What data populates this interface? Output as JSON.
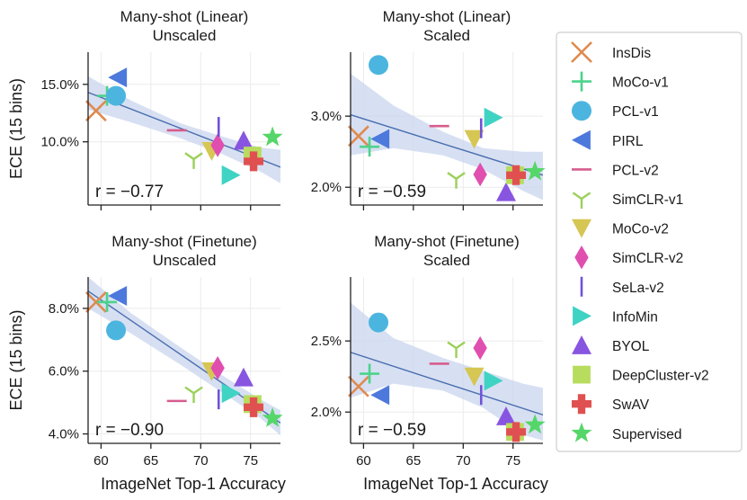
{
  "chart_data": {
    "type": "scatter",
    "legend": {
      "position": "right",
      "entries": [
        "InsDis",
        "MoCo-v1",
        "PCL-v1",
        "PIRL",
        "PCL-v2",
        "SimCLR-v1",
        "MoCo-v2",
        "SimCLR-v2",
        "SeLa-v2",
        "InfoMin",
        "BYOL",
        "DeepCluster-v2",
        "SwAV",
        "Supervised"
      ]
    },
    "methods": [
      {
        "name": "InsDis",
        "marker": "x",
        "color": "#e08a4f"
      },
      {
        "name": "MoCo-v1",
        "marker": "plus",
        "color": "#4bd38b"
      },
      {
        "name": "PCL-v1",
        "marker": "circle",
        "color": "#4cb5df"
      },
      {
        "name": "PIRL",
        "marker": "triangle-left",
        "color": "#4d79dc"
      },
      {
        "name": "PCL-v2",
        "marker": "hline",
        "color": "#d65d8e"
      },
      {
        "name": "SimCLR-v1",
        "marker": "tri-down",
        "color": "#9bd05a"
      },
      {
        "name": "MoCo-v2",
        "marker": "triangle-down",
        "color": "#d6c653"
      },
      {
        "name": "SimCLR-v2",
        "marker": "diamond",
        "color": "#e04fb0"
      },
      {
        "name": "SeLa-v2",
        "marker": "vline",
        "color": "#6f52d9"
      },
      {
        "name": "InfoMin",
        "marker": "triangle-right",
        "color": "#3fd3c4"
      },
      {
        "name": "BYOL",
        "marker": "triangle-up",
        "color": "#8855e0"
      },
      {
        "name": "DeepCluster-v2",
        "marker": "square",
        "color": "#b8dc5e"
      },
      {
        "name": "SwAV",
        "marker": "plus-filled",
        "color": "#e05050"
      },
      {
        "name": "Supervised",
        "marker": "star",
        "color": "#55d669"
      }
    ],
    "panels": [
      {
        "title_line1": "Many-shot (Linear)",
        "title_line2": "Unscaled",
        "ylabel": "ECE (15 bins)",
        "xlabel": "",
        "xlim": [
          58.7,
          78.0
        ],
        "ylim": [
          4.5,
          17.8
        ],
        "xticks": [
          60,
          65,
          70,
          75
        ],
        "xtick_labels": [
          "",
          "",
          "",
          ""
        ],
        "yticks": [
          10,
          15
        ],
        "ytick_labels": [
          "10.0%",
          "15.0%"
        ],
        "annotation": "r = −0.77",
        "fit": {
          "x1": 58.7,
          "y1": 14.3,
          "x2": 78.0,
          "y2": 7.8
        },
        "band": {
          "x": [
            58.7,
            63,
            68,
            72,
            76,
            78.0
          ],
          "upper": [
            15.7,
            13.6,
            11.6,
            10.5,
            9.5,
            9.3
          ],
          "lower": [
            12.8,
            11.7,
            10.3,
            9.0,
            7.4,
            6.4
          ]
        },
        "points": [
          {
            "name": "InsDis",
            "x": 59.5,
            "y": 12.7
          },
          {
            "name": "MoCo-v1",
            "x": 60.6,
            "y": 14.0
          },
          {
            "name": "PCL-v1",
            "x": 61.5,
            "y": 14.0
          },
          {
            "name": "PIRL",
            "x": 61.7,
            "y": 15.6
          },
          {
            "name": "PCL-v2",
            "x": 67.6,
            "y": 11.0
          },
          {
            "name": "SimCLR-v1",
            "x": 69.3,
            "y": 8.5
          },
          {
            "name": "MoCo-v2",
            "x": 71.1,
            "y": 9.2
          },
          {
            "name": "SimCLR-v2",
            "x": 71.7,
            "y": 9.7
          },
          {
            "name": "SeLa-v2",
            "x": 71.8,
            "y": 11.3
          },
          {
            "name": "InfoMin",
            "x": 73.0,
            "y": 7.1
          },
          {
            "name": "BYOL",
            "x": 74.3,
            "y": 10.1
          },
          {
            "name": "DeepCluster-v2",
            "x": 75.2,
            "y": 8.8
          },
          {
            "name": "SwAV",
            "x": 75.3,
            "y": 8.3
          },
          {
            "name": "Supervised",
            "x": 77.2,
            "y": 10.4
          }
        ]
      },
      {
        "title_line1": "Many-shot (Linear)",
        "title_line2": "Scaled",
        "ylabel": "",
        "xlabel": "",
        "xlim": [
          58.7,
          78.0
        ],
        "ylim": [
          1.75,
          3.9
        ],
        "xticks": [
          60,
          65,
          70,
          75
        ],
        "xtick_labels": [
          "",
          "",
          "",
          ""
        ],
        "yticks": [
          2,
          3
        ],
        "ytick_labels": [
          "2.0%",
          "3.0%"
        ],
        "annotation": "r = −0.59",
        "fit": {
          "x1": 58.7,
          "y1": 3.02,
          "x2": 78.0,
          "y2": 2.17
        },
        "band": {
          "x": [
            58.7,
            63,
            68,
            72,
            76,
            78.0
          ],
          "upper": [
            3.6,
            3.15,
            2.78,
            2.55,
            2.5,
            2.5
          ],
          "lower": [
            2.45,
            2.55,
            2.45,
            2.25,
            1.95,
            1.82
          ]
        },
        "points": [
          {
            "name": "InsDis",
            "x": 59.5,
            "y": 2.72
          },
          {
            "name": "MoCo-v1",
            "x": 60.6,
            "y": 2.57
          },
          {
            "name": "PCL-v1",
            "x": 61.5,
            "y": 3.72
          },
          {
            "name": "PIRL",
            "x": 61.7,
            "y": 2.68
          },
          {
            "name": "PCL-v2",
            "x": 67.6,
            "y": 2.86
          },
          {
            "name": "SimCLR-v1",
            "x": 69.3,
            "y": 2.12
          },
          {
            "name": "MoCo-v2",
            "x": 71.1,
            "y": 2.68
          },
          {
            "name": "SimCLR-v2",
            "x": 71.7,
            "y": 2.18
          },
          {
            "name": "SeLa-v2",
            "x": 71.8,
            "y": 2.83
          },
          {
            "name": "InfoMin",
            "x": 73.0,
            "y": 2.98
          },
          {
            "name": "BYOL",
            "x": 74.3,
            "y": 1.93
          },
          {
            "name": "DeepCluster-v2",
            "x": 75.2,
            "y": 2.17
          },
          {
            "name": "SwAV",
            "x": 75.3,
            "y": 2.17
          },
          {
            "name": "Supervised",
            "x": 77.2,
            "y": 2.22
          }
        ]
      },
      {
        "title_line1": "Many-shot (Finetune)",
        "title_line2": "Unscaled",
        "ylabel": "ECE (15 bins)",
        "xlabel": "ImageNet Top-1 Accuracy",
        "xlim": [
          58.7,
          78.0
        ],
        "ylim": [
          3.7,
          9.0
        ],
        "xticks": [
          60,
          65,
          70,
          75
        ],
        "xtick_labels": [
          "60",
          "65",
          "70",
          "75"
        ],
        "yticks": [
          4,
          6,
          8
        ],
        "ytick_labels": [
          "4.0%",
          "6.0%",
          "8.0%"
        ],
        "annotation": "r = −0.90",
        "fit": {
          "x1": 58.7,
          "y1": 8.55,
          "x2": 78.0,
          "y2": 4.35
        },
        "band": {
          "x": [
            58.7,
            63,
            68,
            72,
            76,
            78.0
          ],
          "upper": [
            9.0,
            7.85,
            6.75,
            5.9,
            5.1,
            4.75
          ],
          "lower": [
            8.0,
            7.2,
            6.2,
            5.35,
            4.5,
            3.95
          ]
        },
        "points": [
          {
            "name": "InsDis",
            "x": 59.5,
            "y": 8.2
          },
          {
            "name": "MoCo-v1",
            "x": 60.6,
            "y": 8.2
          },
          {
            "name": "PCL-v1",
            "x": 61.5,
            "y": 7.3
          },
          {
            "name": "PIRL",
            "x": 61.7,
            "y": 8.4
          },
          {
            "name": "PCL-v2",
            "x": 67.6,
            "y": 5.05
          },
          {
            "name": "SimCLR-v1",
            "x": 69.3,
            "y": 5.3
          },
          {
            "name": "MoCo-v2",
            "x": 71.1,
            "y": 6.0
          },
          {
            "name": "SimCLR-v2",
            "x": 71.7,
            "y": 6.1
          },
          {
            "name": "SeLa-v2",
            "x": 71.8,
            "y": 5.1
          },
          {
            "name": "InfoMin",
            "x": 73.0,
            "y": 5.3
          },
          {
            "name": "BYOL",
            "x": 74.3,
            "y": 5.8
          },
          {
            "name": "DeepCluster-v2",
            "x": 75.2,
            "y": 4.95
          },
          {
            "name": "SwAV",
            "x": 75.3,
            "y": 4.85
          },
          {
            "name": "Supervised",
            "x": 77.2,
            "y": 4.5
          }
        ]
      },
      {
        "title_line1": "Many-shot (Finetune)",
        "title_line2": "Scaled",
        "ylabel": "",
        "xlabel": "ImageNet Top-1 Accuracy",
        "xlim": [
          58.7,
          78.0
        ],
        "ylim": [
          1.78,
          2.95
        ],
        "xticks": [
          60,
          65,
          70,
          75
        ],
        "xtick_labels": [
          "60",
          "65",
          "70",
          "75"
        ],
        "yticks": [
          2.0,
          2.5
        ],
        "ytick_labels": [
          "2.0%",
          "2.5%"
        ],
        "annotation": "r = −0.59",
        "fit": {
          "x1": 58.7,
          "y1": 2.42,
          "x2": 78.0,
          "y2": 1.98
        },
        "band": {
          "x": [
            58.7,
            63,
            68,
            72,
            76,
            78.0
          ],
          "upper": [
            2.77,
            2.52,
            2.38,
            2.29,
            2.2,
            2.17
          ],
          "lower": [
            2.1,
            2.2,
            2.15,
            2.03,
            1.84,
            1.8
          ]
        },
        "points": [
          {
            "name": "InsDis",
            "x": 59.5,
            "y": 2.18
          },
          {
            "name": "MoCo-v1",
            "x": 60.6,
            "y": 2.27
          },
          {
            "name": "PCL-v1",
            "x": 61.5,
            "y": 2.63
          },
          {
            "name": "PIRL",
            "x": 61.7,
            "y": 2.12
          },
          {
            "name": "PCL-v2",
            "x": 67.6,
            "y": 2.34
          },
          {
            "name": "SimCLR-v1",
            "x": 69.3,
            "y": 2.45
          },
          {
            "name": "MoCo-v2",
            "x": 71.1,
            "y": 2.25
          },
          {
            "name": "SimCLR-v2",
            "x": 71.7,
            "y": 2.45
          },
          {
            "name": "SeLa-v2",
            "x": 71.8,
            "y": 2.12
          },
          {
            "name": "InfoMin",
            "x": 73.0,
            "y": 2.22
          },
          {
            "name": "BYOL",
            "x": 74.3,
            "y": 1.97
          },
          {
            "name": "DeepCluster-v2",
            "x": 75.2,
            "y": 1.86
          },
          {
            "name": "SwAV",
            "x": 75.3,
            "y": 1.86
          },
          {
            "name": "Supervised",
            "x": 77.2,
            "y": 1.91
          }
        ]
      }
    ]
  }
}
